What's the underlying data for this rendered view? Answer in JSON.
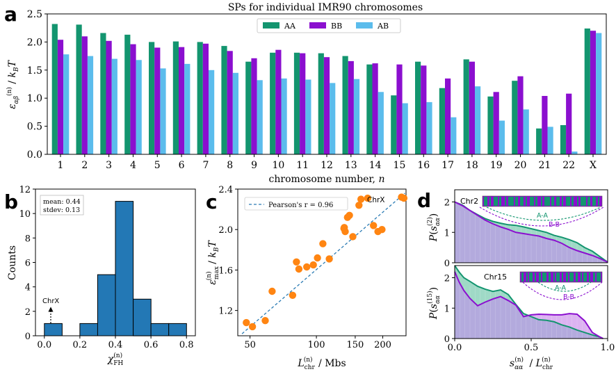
{
  "colors": {
    "AA": "#13956f",
    "BB": "#8b0fcf",
    "AB": "#5bbcec",
    "hist": "#2378b5",
    "scatter": "#ff8512",
    "fit": "#2a7bb4",
    "fillA": "#9fd9c6",
    "fillB": "#d6a6ef",
    "fillBase": "#b3aadd"
  },
  "panel_labels": {
    "a": "a",
    "b": "b",
    "c": "c",
    "d": "d"
  },
  "chart_data": [
    {
      "id": "a",
      "type": "bar",
      "title": "SPs for individual IMR90 chromosomes",
      "xlabel": "chromosome number, n",
      "ylabel": "ε_αβ^(n) / k_B T",
      "ylim": [
        0,
        2.5
      ],
      "yticks": [
        "0.0",
        "0.5",
        "1.0",
        "1.5",
        "2.0",
        "2.5"
      ],
      "categories": [
        "1",
        "2",
        "3",
        "4",
        "5",
        "6",
        "7",
        "8",
        "9",
        "10",
        "11",
        "12",
        "13",
        "14",
        "15",
        "16",
        "17",
        "18",
        "19",
        "20",
        "21",
        "22",
        "X"
      ],
      "legend_position": "top-center",
      "series": [
        {
          "name": "AA",
          "values": [
            2.32,
            2.31,
            2.16,
            2.13,
            2.0,
            2.01,
            2.0,
            1.93,
            1.65,
            1.81,
            1.81,
            1.8,
            1.75,
            1.6,
            1.05,
            1.65,
            1.18,
            1.69,
            1.03,
            1.31,
            0.46,
            0.52,
            2.24
          ]
        },
        {
          "name": "BB",
          "values": [
            2.04,
            2.1,
            2.02,
            1.96,
            1.9,
            1.91,
            1.97,
            1.84,
            1.71,
            1.86,
            1.8,
            1.73,
            1.66,
            1.62,
            1.6,
            1.58,
            1.35,
            1.65,
            1.11,
            1.39,
            1.04,
            1.08,
            2.2
          ]
        },
        {
          "name": "AB",
          "values": [
            1.78,
            1.75,
            1.7,
            1.68,
            1.53,
            1.61,
            1.5,
            1.45,
            1.32,
            1.35,
            1.33,
            1.27,
            1.34,
            1.11,
            0.91,
            0.93,
            0.66,
            1.21,
            0.6,
            0.8,
            0.49,
            0.05,
            2.16
          ]
        }
      ]
    },
    {
      "id": "b",
      "type": "bar",
      "title": "",
      "xlabel": "χ_FH^(n)",
      "ylabel": "Counts",
      "xlim": [
        -0.05,
        0.85
      ],
      "ylim": [
        0,
        12
      ],
      "xticks": [
        "0.0",
        "0.2",
        "0.4",
        "0.6",
        "0.8"
      ],
      "yticks": [
        "0",
        "2",
        "4",
        "6",
        "8",
        "10",
        "12"
      ],
      "bin_edges": [
        0.0,
        0.1,
        0.2,
        0.3,
        0.4,
        0.5,
        0.6,
        0.7,
        0.8
      ],
      "counts": [
        1,
        0,
        1,
        5,
        11,
        3,
        1,
        1
      ],
      "stats_lines": [
        "mean: 0.44",
        "stdev: 0.13"
      ],
      "annotation": "ChrX"
    },
    {
      "id": "c",
      "type": "scatter",
      "title": "",
      "xlabel": "L_chr^(n) / Mbs",
      "ylabel": "ε_max^(n) / k_B T",
      "xscale": "log",
      "xlim": [
        44,
        255
      ],
      "ylim": [
        0.95,
        2.4
      ],
      "xticks": [
        "50",
        "100",
        "150",
        "200"
      ],
      "yticks": [
        "1.2",
        "1.6",
        "2.0",
        "2.4"
      ],
      "legend": "Pearson's r = 0.96",
      "annotation": "ChrX",
      "x": [
        48.1,
        51.3,
        58.6,
        63.0,
        78.0,
        81.2,
        83.3,
        90.4,
        96.9,
        101.1,
        107.0,
        114.4,
        130.2,
        133.3,
        133.8,
        135.1,
        138.4,
        141.2,
        146.3,
        156.0,
        159.3,
        170.8,
        181.5,
        190.2,
        198.3,
        243.2,
        249.3
      ],
      "y": [
        1.08,
        1.04,
        1.1,
        1.39,
        1.35,
        1.68,
        1.61,
        1.63,
        1.65,
        1.72,
        1.86,
        1.71,
        2.24,
        2.01,
        2.02,
        1.98,
        2.12,
        2.14,
        1.93,
        2.24,
        2.3,
        2.31,
        2.04,
        1.98,
        2.0,
        2.32,
        2.31
      ]
    },
    {
      "id": "d",
      "type": "area",
      "xlabel": "s_αα^(n) / L_chr^(n)",
      "xlim": [
        0,
        1
      ],
      "xticks": [
        "0.0",
        "0.5",
        "1.0"
      ],
      "subplots": [
        {
          "ylabel": "P(s_αα^(2))",
          "ylim": [
            0,
            2.4
          ],
          "yticks": [
            "0",
            "1",
            "2"
          ],
          "label": "Chr2",
          "arc_labels": [
            "A-A",
            "B-B"
          ],
          "x": [
            0,
            0.05,
            0.1,
            0.15,
            0.2,
            0.25,
            0.3,
            0.35,
            0.4,
            0.45,
            0.5,
            0.55,
            0.6,
            0.65,
            0.7,
            0.75,
            0.8,
            0.85,
            0.9,
            0.95,
            1.0
          ],
          "AA": [
            2.0,
            1.9,
            1.72,
            1.58,
            1.45,
            1.36,
            1.3,
            1.25,
            1.23,
            1.18,
            1.12,
            1.06,
            1.0,
            0.9,
            0.84,
            0.76,
            0.66,
            0.5,
            0.38,
            0.2,
            0.02
          ],
          "BB": [
            2.0,
            1.88,
            1.72,
            1.56,
            1.4,
            1.28,
            1.18,
            1.1,
            1.0,
            0.96,
            0.92,
            0.88,
            0.8,
            0.74,
            0.64,
            0.5,
            0.4,
            0.32,
            0.24,
            0.14,
            0.02
          ]
        },
        {
          "ylabel": "P(s_αα^(15))",
          "ylim": [
            0,
            2.4
          ],
          "yticks": [
            "0",
            "1",
            "2"
          ],
          "label": "Chr15",
          "arc_labels": [
            "A-A",
            "B-B"
          ],
          "x": [
            0,
            0.03,
            0.06,
            0.1,
            0.15,
            0.2,
            0.25,
            0.3,
            0.35,
            0.4,
            0.45,
            0.5,
            0.55,
            0.6,
            0.65,
            0.7,
            0.75,
            0.8,
            0.85,
            0.9,
            0.95,
            0.97
          ],
          "AA": [
            2.4,
            2.18,
            2.0,
            1.88,
            1.72,
            1.62,
            1.55,
            1.6,
            1.45,
            1.12,
            0.82,
            0.72,
            0.62,
            0.6,
            0.55,
            0.45,
            0.38,
            0.28,
            0.2,
            0.12,
            0.05,
            0.0
          ],
          "BB": [
            2.2,
            1.85,
            1.58,
            1.32,
            1.08,
            1.2,
            1.3,
            1.38,
            1.25,
            1.1,
            0.72,
            0.78,
            0.8,
            0.79,
            0.78,
            0.78,
            0.82,
            0.8,
            0.58,
            0.2,
            0.05,
            0.0
          ]
        }
      ]
    }
  ]
}
